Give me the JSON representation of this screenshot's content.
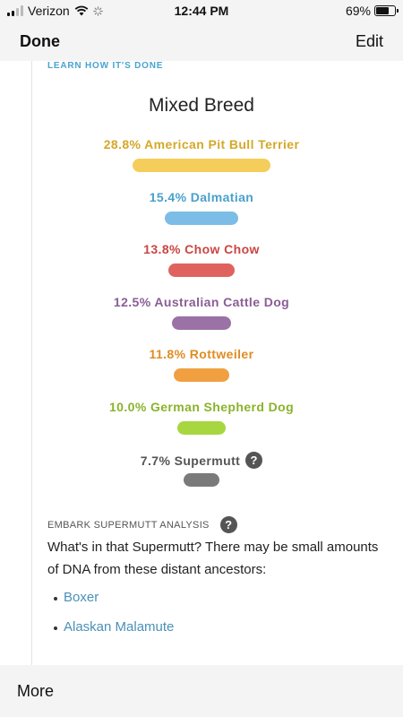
{
  "status_bar": {
    "carrier": "Verizon",
    "time": "12:44 PM",
    "battery_percent": "69%",
    "battery_level": 0.69
  },
  "nav": {
    "done_label": "Done",
    "edit_label": "Edit"
  },
  "report": {
    "learn_link": "LEARN HOW IT'S DONE",
    "title": "Mixed Breed",
    "breeds": [
      {
        "label": "28.8% American Pit Bull Terrier",
        "color": "#f5cd5a",
        "text_color": "#d4a82a",
        "percent": 28.8
      },
      {
        "label": "15.4% Dalmatian",
        "color": "#7bbde6",
        "text_color": "#4aa0cc",
        "percent": 15.4
      },
      {
        "label": "13.8% Chow Chow",
        "color": "#e0625f",
        "text_color": "#c94643",
        "percent": 13.8
      },
      {
        "label": "12.5% Australian Cattle Dog",
        "color": "#9b72a6",
        "text_color": "#8a5d95",
        "percent": 12.5
      },
      {
        "label": "11.8% Rottweiler",
        "color": "#f0a040",
        "text_color": "#e08c22",
        "percent": 11.8
      },
      {
        "label": "10.0% German Shepherd Dog",
        "color": "#a8d640",
        "text_color": "#8ab32a",
        "percent": 10.0
      },
      {
        "label": "7.7% Supermutt",
        "color": "#7a7a7a",
        "text_color": "#555555",
        "percent": 7.7,
        "has_help": true
      }
    ],
    "supermutt": {
      "heading": "EMBARK SUPERMUTT ANALYSIS",
      "description": "What's in that Supermutt? There may be small amounts of DNA from these distant ancestors:",
      "ancestors": [
        "Boxer",
        "Alaskan Malamute"
      ]
    }
  },
  "bottom": {
    "more_label": "More"
  }
}
